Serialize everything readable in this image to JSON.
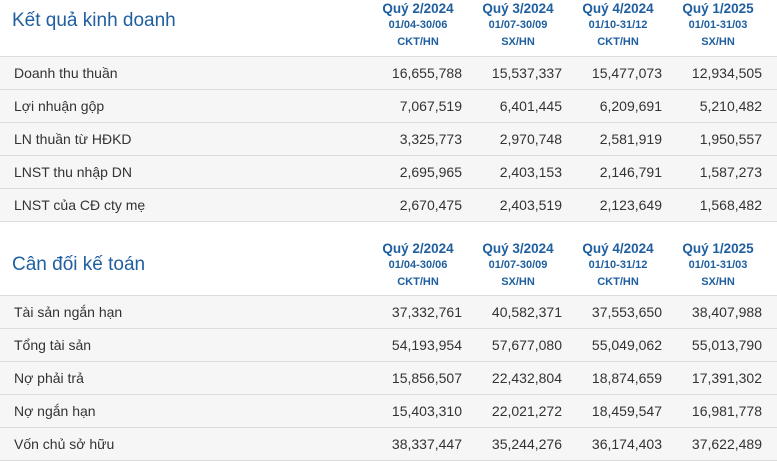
{
  "business": {
    "title": "Kết quả kinh doanh",
    "columns": [
      {
        "quarter": "Quý 2/2024",
        "dates": "01/04-30/06",
        "type": "CKT/HN"
      },
      {
        "quarter": "Quý 3/2024",
        "dates": "01/07-30/09",
        "type": "SX/HN"
      },
      {
        "quarter": "Quý 4/2024",
        "dates": "01/10-31/12",
        "type": "CKT/HN"
      },
      {
        "quarter": "Quý 1/2025",
        "dates": "01/01-31/03",
        "type": "SX/HN"
      }
    ],
    "rows": [
      {
        "label": "Doanh thu thuần",
        "values": [
          "16,655,788",
          "15,537,337",
          "15,477,073",
          "12,934,505"
        ]
      },
      {
        "label": "Lợi nhuận gộp",
        "values": [
          "7,067,519",
          "6,401,445",
          "6,209,691",
          "5,210,482"
        ]
      },
      {
        "label": "LN thuần từ HĐKD",
        "values": [
          "3,325,773",
          "2,970,748",
          "2,581,919",
          "1,950,557"
        ]
      },
      {
        "label": "LNST thu nhập DN",
        "values": [
          "2,695,965",
          "2,403,153",
          "2,146,791",
          "1,587,273"
        ]
      },
      {
        "label": "LNST của CĐ cty mẹ",
        "values": [
          "2,670,475",
          "2,403,519",
          "2,123,649",
          "1,568,482"
        ]
      }
    ]
  },
  "balance": {
    "title": "Cân đối kế toán",
    "columns": [
      {
        "quarter": "Quý 2/2024",
        "dates": "01/04-30/06",
        "type": "CKT/HN"
      },
      {
        "quarter": "Quý 3/2024",
        "dates": "01/07-30/09",
        "type": "SX/HN"
      },
      {
        "quarter": "Quý 4/2024",
        "dates": "01/10-31/12",
        "type": "CKT/HN"
      },
      {
        "quarter": "Quý 1/2025",
        "dates": "01/01-31/03",
        "type": "SX/HN"
      }
    ],
    "rows": [
      {
        "label": "Tài sản ngắn hạn",
        "values": [
          "37,332,761",
          "40,582,371",
          "37,553,650",
          "38,407,988"
        ]
      },
      {
        "label": "Tổng tài sản",
        "values": [
          "54,193,954",
          "57,677,080",
          "55,049,062",
          "55,013,790"
        ]
      },
      {
        "label": "Nợ phải trả",
        "values": [
          "15,856,507",
          "22,432,804",
          "18,874,659",
          "17,391,302"
        ]
      },
      {
        "label": "Nợ ngắn hạn",
        "values": [
          "15,403,310",
          "22,021,272",
          "18,459,547",
          "16,981,778"
        ]
      },
      {
        "label": "Vốn chủ sở hữu",
        "values": [
          "38,337,447",
          "35,244,276",
          "36,174,403",
          "37,622,489"
        ]
      }
    ]
  }
}
